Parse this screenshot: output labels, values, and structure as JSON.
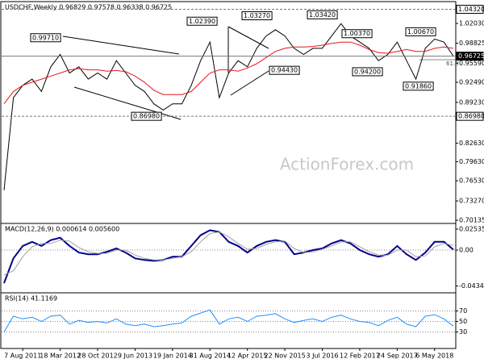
{
  "chart_data": [
    {
      "type": "line",
      "title": "USDCHF,Weekly  0.96829 0.97578 0.96338 0.96725",
      "watermark": "ActionForex.com",
      "categories": [
        null,
        null,
        "7 Aug 2011",
        null,
        null,
        null,
        "18 Mar 2012",
        null,
        null,
        null,
        "28 Oct 2012",
        null,
        null,
        null,
        "9 Jun 2013",
        null,
        null,
        null,
        "19 Jan 2014",
        null,
        null,
        null,
        "31 Aug 2014",
        null,
        null,
        null,
        "12 Apr 2015",
        null,
        null,
        null,
        "22 Nov 2015",
        null,
        null,
        null,
        "3 Jul 2016",
        null,
        null,
        null,
        "12 Feb 2017",
        null,
        null,
        null,
        "24 Sep 2017",
        null,
        null,
        null,
        "6 May 2018",
        null,
        null
      ],
      "series": [
        {
          "color": "#000000",
          "values": [
            0.75,
            0.9,
            0.92,
            0.93,
            0.91,
            0.95,
            0.97,
            0.94,
            0.95,
            0.93,
            0.94,
            0.93,
            0.96,
            0.94,
            0.92,
            0.91,
            0.89,
            0.88,
            0.89,
            0.89,
            0.92,
            0.96,
            0.99,
            0.9,
            0.94,
            0.96,
            0.95,
            0.98,
            1,
            1.01,
            1,
            0.98,
            0.97,
            0.98,
            0.98,
            1,
            1.02,
            1,
            0.99,
            0.98,
            0.96,
            0.97,
            0.99,
            0.96,
            0.93,
            0.98,
            0.995,
            0.99,
            0.96725
          ]
        },
        {
          "color": "#e8171d",
          "values": [
            0.89,
            0.91,
            0.92,
            0.925,
            0.93,
            0.935,
            0.94,
            0.945,
            0.947,
            0.945,
            0.945,
            0.943,
            0.944,
            0.942,
            0.935,
            0.925,
            0.912,
            0.905,
            0.905,
            0.905,
            0.91,
            0.925,
            0.94,
            0.945,
            0.945,
            0.943,
            0.948,
            0.955,
            0.965,
            0.975,
            0.98,
            0.982,
            0.982,
            0.983,
            0.985,
            0.988,
            0.99,
            0.99,
            0.985,
            0.978,
            0.973,
            0.972,
            0.975,
            0.978,
            0.975,
            0.975,
            0.98,
            0.982,
            0.98
          ]
        }
      ],
      "ylim": [
        0.6975,
        1.0517
      ],
      "yticks": [
        {
          "value": 1.0203,
          "label": "1.02030"
        },
        0.98825,
        {
          "value": 0.9559,
          "label": "0.95590"
        },
        {
          "value": 0.9249,
          "label": "0.92490"
        },
        {
          "value": 0.8923,
          "label": "0.89230"
        },
        {
          "value": 0.8263,
          "label": "0.82630"
        },
        {
          "value": 0.7963,
          "label": "0.79630"
        },
        {
          "value": 0.7653,
          "label": "0.76530"
        },
        {
          "value": 0.7327,
          "label": "0.73270"
        },
        0.70135
      ],
      "levels": [
        {
          "value": 1.0432,
          "label": "1.04320"
        },
        0.96725,
        {
          "value": 0.8698,
          "label": "0.86980"
        }
      ],
      "annotations": [
        {
          "value": 0.9971,
          "label": "0.99710"
        },
        {
          "value": 0.8698,
          "label": "0.86980"
        },
        {
          "value": 1.0239,
          "label": "1.02390"
        },
        {
          "value": 1.0327,
          "label": "1.03270"
        },
        {
          "value": 1.0342,
          "label": "1.03420"
        },
        {
          "value": 0.9443,
          "label": "0.94430"
        },
        {
          "value": 1.0037,
          "label": "1.00370"
        },
        {
          "value": 0.942,
          "label": "0.94200"
        },
        {
          "value": 1.0067,
          "label": "1.00670"
        },
        {
          "value": 0.9186,
          "label": "0.91860"
        }
      ],
      "fib_label": "61.8"
    },
    {
      "type": "line",
      "title": "MACD(12,26,9) 0.000614 0.005600",
      "series": [
        {
          "color": "#00008b",
          "values": [
            -0.04,
            -0.01,
            0.005,
            0.01,
            0.005,
            0.012,
            0.015,
            0.005,
            -0.003,
            -0.005,
            -0.005,
            -0.002,
            0.002,
            -0.003,
            -0.01,
            -0.012,
            -0.013,
            -0.012,
            -0.008,
            -0.008,
            0.005,
            0.018,
            0.024,
            0.022,
            0.01,
            0.005,
            -0.003,
            0.005,
            0.01,
            0.012,
            0.01,
            -0.005,
            -0.003,
            0,
            0.002,
            0.008,
            0.012,
            0.008,
            0,
            -0.005,
            -0.008,
            -0.005,
            0.005,
            -0.005,
            -0.012,
            -0.003,
            0.01,
            0.01,
            0.000614
          ]
        },
        {
          "color": "#a0a0a0",
          "values": [
            -0.03,
            -0.025,
            -0.008,
            0.004,
            0.008,
            0.008,
            0.012,
            0.011,
            0.003,
            -0.002,
            -0.004,
            -0.004,
            0,
            0,
            -0.006,
            -0.01,
            -0.012,
            -0.012,
            -0.01,
            -0.008,
            -0.002,
            0.01,
            0.02,
            0.022,
            0.016,
            0.008,
            0.001,
            0.002,
            0.007,
            0.01,
            0.011,
            0.002,
            -0.003,
            -0.002,
            0.001,
            0.005,
            0.01,
            0.01,
            0.004,
            -0.002,
            -0.006,
            -0.006,
            0,
            0,
            -0.008,
            -0.007,
            0.004,
            0.008,
            0.0056
          ]
        }
      ],
      "ylim": [
        -0.0507,
        0.0293
      ],
      "yticks": [
        0.025353,
        {
          "value": 0,
          "label": "0.00"
        },
        {
          "value": -0.043415,
          "label": "-0.043415"
        }
      ]
    },
    {
      "type": "line",
      "title": "RSI(14) 41.1169",
      "series": [
        {
          "color": "#1e90ff",
          "values": [
            30,
            60,
            55,
            58,
            50,
            60,
            62,
            45,
            52,
            48,
            50,
            47,
            55,
            45,
            42,
            45,
            40,
            42,
            45,
            47,
            60,
            66,
            72,
            45,
            55,
            58,
            50,
            60,
            62,
            65,
            55,
            48,
            52,
            55,
            50,
            58,
            62,
            55,
            50,
            48,
            42,
            52,
            58,
            45,
            40,
            60,
            63,
            55,
            41.1169
          ]
        }
      ],
      "ylim": [
        0,
        100
      ],
      "yticks": [
        70,
        50,
        30
      ],
      "grid": true
    }
  ]
}
